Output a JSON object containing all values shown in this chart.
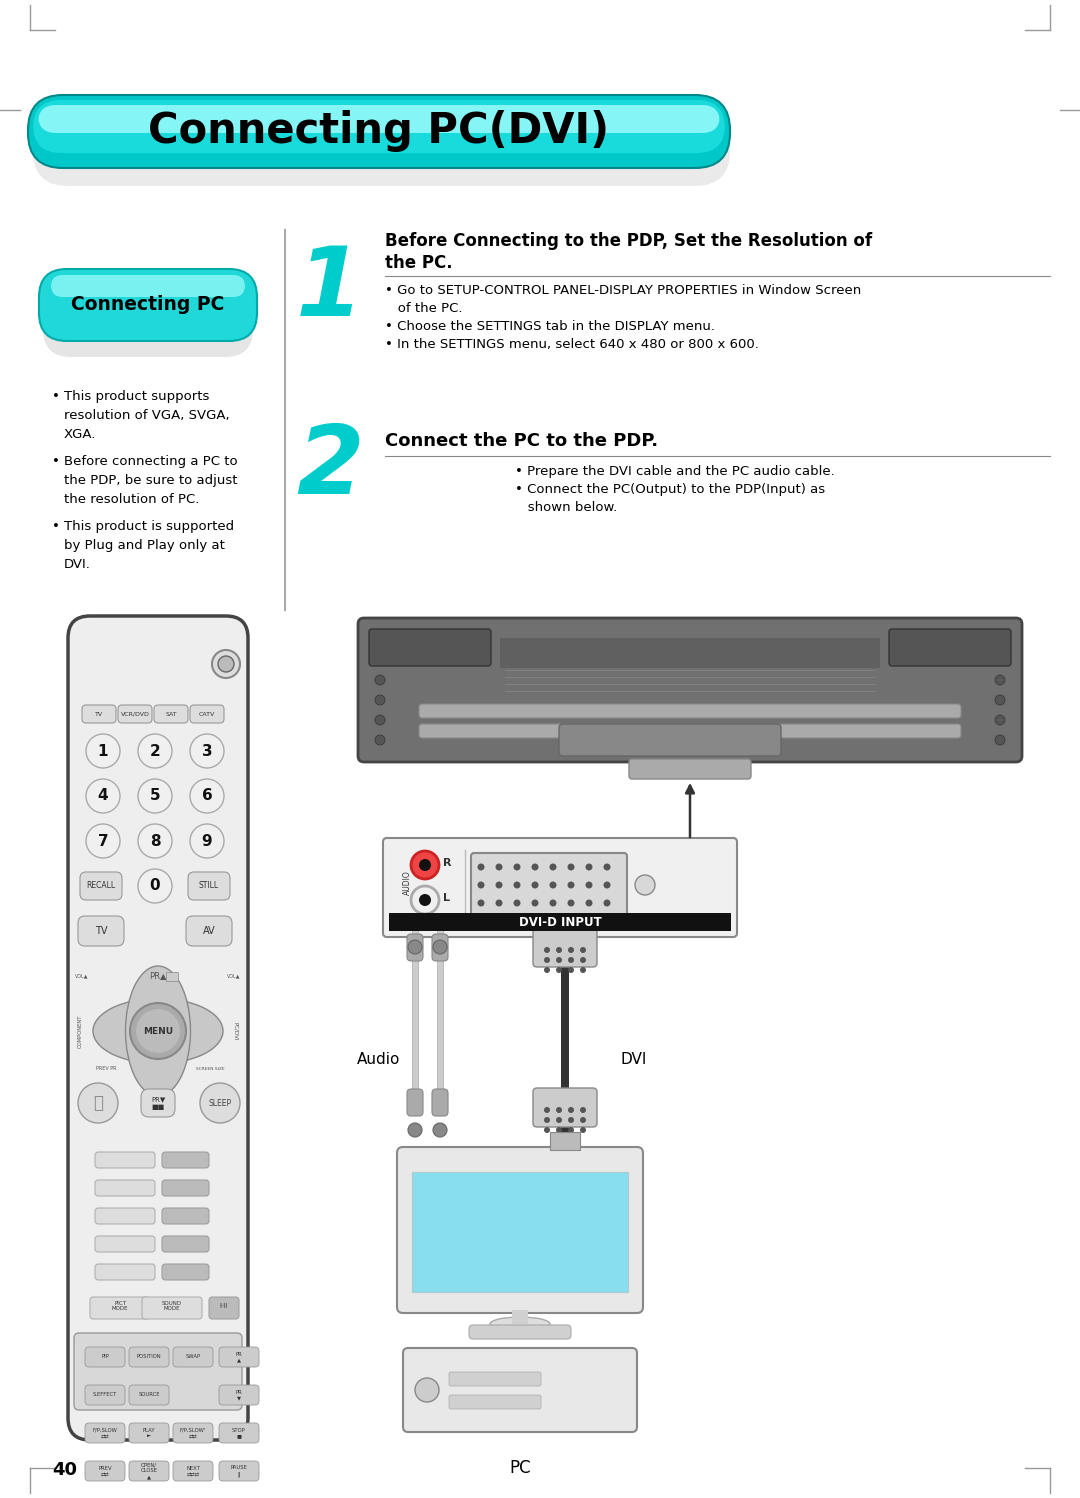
{
  "title": "Connecting PC(DVI)",
  "page_bg": "#ffffff",
  "page_number": "40",
  "connecting_pc_bubble_text": "Connecting PC",
  "left_bullets": [
    [
      "This product supports",
      "resolution of VGA, SVGA,",
      "XGA."
    ],
    [
      "Before connecting a PC to",
      "the PDP, be sure to adjust",
      "the resolution of PC."
    ],
    [
      "This product is supported",
      "by Plug and Play only at",
      "DVI."
    ]
  ],
  "step1_number": "1",
  "step1_title_line1": "Before Connecting to the PDP, Set the Resolution of",
  "step1_title_line2": "the PC.",
  "step1_bullets": [
    "• Go to SETUP-CONTROL PANEL-DISPLAY PROPERTIES in Window Screen",
    "   of the PC.",
    "• Choose the SETTINGS tab in the DISPLAY menu.",
    "• In the SETTINGS menu, select 640 x 480 or 800 x 600."
  ],
  "step2_number": "2",
  "step2_title": "Connect the PC to the PDP.",
  "step2_bullets": [
    "• Prepare the DVI cable and the PC audio cable.",
    "• Connect the PC(Output) to the PDP(Input) as",
    "   shown below."
  ],
  "audio_label": "Audio",
  "dvi_label": "DVI",
  "pc_label": "PC",
  "step_number_color": "#00cccc",
  "cyan_color": "#00d8d8",
  "cyan_light": "#7fffff",
  "header_shadow": "#b0b0b0"
}
